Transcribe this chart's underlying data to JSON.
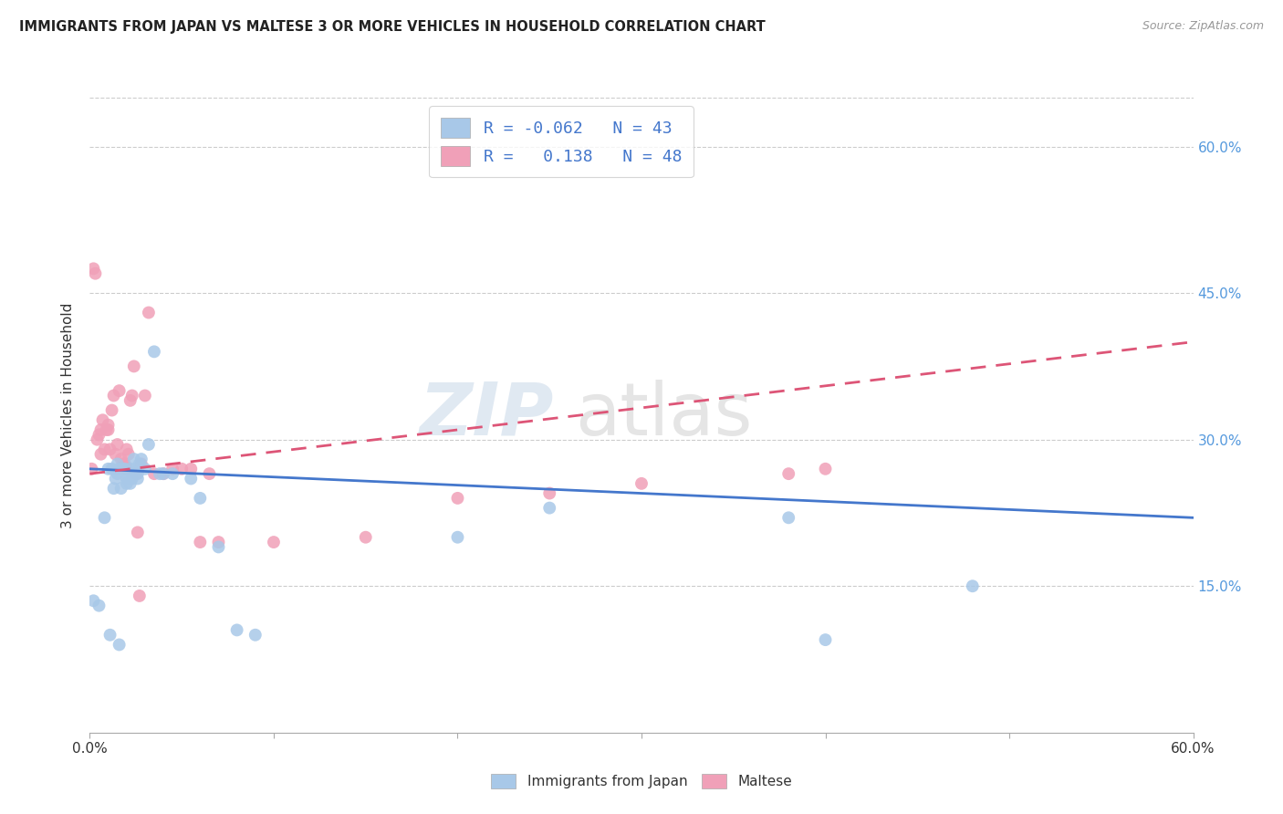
{
  "title": "IMMIGRANTS FROM JAPAN VS MALTESE 3 OR MORE VEHICLES IN HOUSEHOLD CORRELATION CHART",
  "source": "Source: ZipAtlas.com",
  "ylabel": "3 or more Vehicles in Household",
  "ytick_vals": [
    0.6,
    0.45,
    0.3,
    0.15
  ],
  "ytick_labels": [
    "60.0%",
    "45.0%",
    "30.0%",
    "15.0%"
  ],
  "xlim": [
    0.0,
    0.6
  ],
  "ylim": [
    0.0,
    0.65
  ],
  "legend_label_blue": "Immigrants from Japan",
  "legend_label_pink": "Maltese",
  "R_blue": -0.062,
  "N_blue": 43,
  "R_pink": 0.138,
  "N_pink": 48,
  "blue_color": "#a8c8e8",
  "pink_color": "#f0a0b8",
  "blue_line_color": "#4477cc",
  "pink_line_color": "#dd5577",
  "blue_scatter_x": [
    0.002,
    0.005,
    0.008,
    0.01,
    0.011,
    0.012,
    0.013,
    0.014,
    0.015,
    0.015,
    0.016,
    0.016,
    0.017,
    0.018,
    0.019,
    0.02,
    0.02,
    0.021,
    0.022,
    0.022,
    0.023,
    0.024,
    0.025,
    0.026,
    0.026,
    0.027,
    0.028,
    0.03,
    0.032,
    0.035,
    0.038,
    0.04,
    0.045,
    0.055,
    0.06,
    0.07,
    0.08,
    0.09,
    0.2,
    0.25,
    0.38,
    0.4,
    0.48
  ],
  "blue_scatter_y": [
    0.135,
    0.13,
    0.22,
    0.27,
    0.1,
    0.27,
    0.25,
    0.26,
    0.265,
    0.275,
    0.27,
    0.09,
    0.25,
    0.27,
    0.27,
    0.26,
    0.255,
    0.26,
    0.27,
    0.255,
    0.26,
    0.28,
    0.27,
    0.265,
    0.26,
    0.275,
    0.28,
    0.27,
    0.295,
    0.39,
    0.265,
    0.265,
    0.265,
    0.26,
    0.24,
    0.19,
    0.105,
    0.1,
    0.2,
    0.23,
    0.22,
    0.095,
    0.15
  ],
  "pink_scatter_x": [
    0.001,
    0.002,
    0.003,
    0.004,
    0.005,
    0.006,
    0.006,
    0.007,
    0.008,
    0.009,
    0.01,
    0.01,
    0.011,
    0.012,
    0.013,
    0.014,
    0.015,
    0.016,
    0.017,
    0.018,
    0.019,
    0.02,
    0.02,
    0.021,
    0.022,
    0.023,
    0.024,
    0.025,
    0.026,
    0.027,
    0.028,
    0.03,
    0.032,
    0.035,
    0.04,
    0.045,
    0.05,
    0.055,
    0.06,
    0.065,
    0.07,
    0.1,
    0.15,
    0.2,
    0.25,
    0.3,
    0.38,
    0.4
  ],
  "pink_scatter_y": [
    0.27,
    0.475,
    0.47,
    0.3,
    0.305,
    0.31,
    0.285,
    0.32,
    0.29,
    0.31,
    0.31,
    0.315,
    0.29,
    0.33,
    0.345,
    0.285,
    0.295,
    0.35,
    0.28,
    0.275,
    0.275,
    0.27,
    0.29,
    0.285,
    0.34,
    0.345,
    0.375,
    0.265,
    0.205,
    0.14,
    0.275,
    0.345,
    0.43,
    0.265,
    0.265,
    0.27,
    0.27,
    0.27,
    0.195,
    0.265,
    0.195,
    0.195,
    0.2,
    0.24,
    0.245,
    0.255,
    0.265,
    0.27
  ],
  "blue_trendline_x": [
    0.0,
    0.6
  ],
  "blue_trendline_y": [
    0.27,
    0.22
  ],
  "pink_trendline_x": [
    0.0,
    0.6
  ],
  "pink_trendline_y": [
    0.265,
    0.4
  ]
}
